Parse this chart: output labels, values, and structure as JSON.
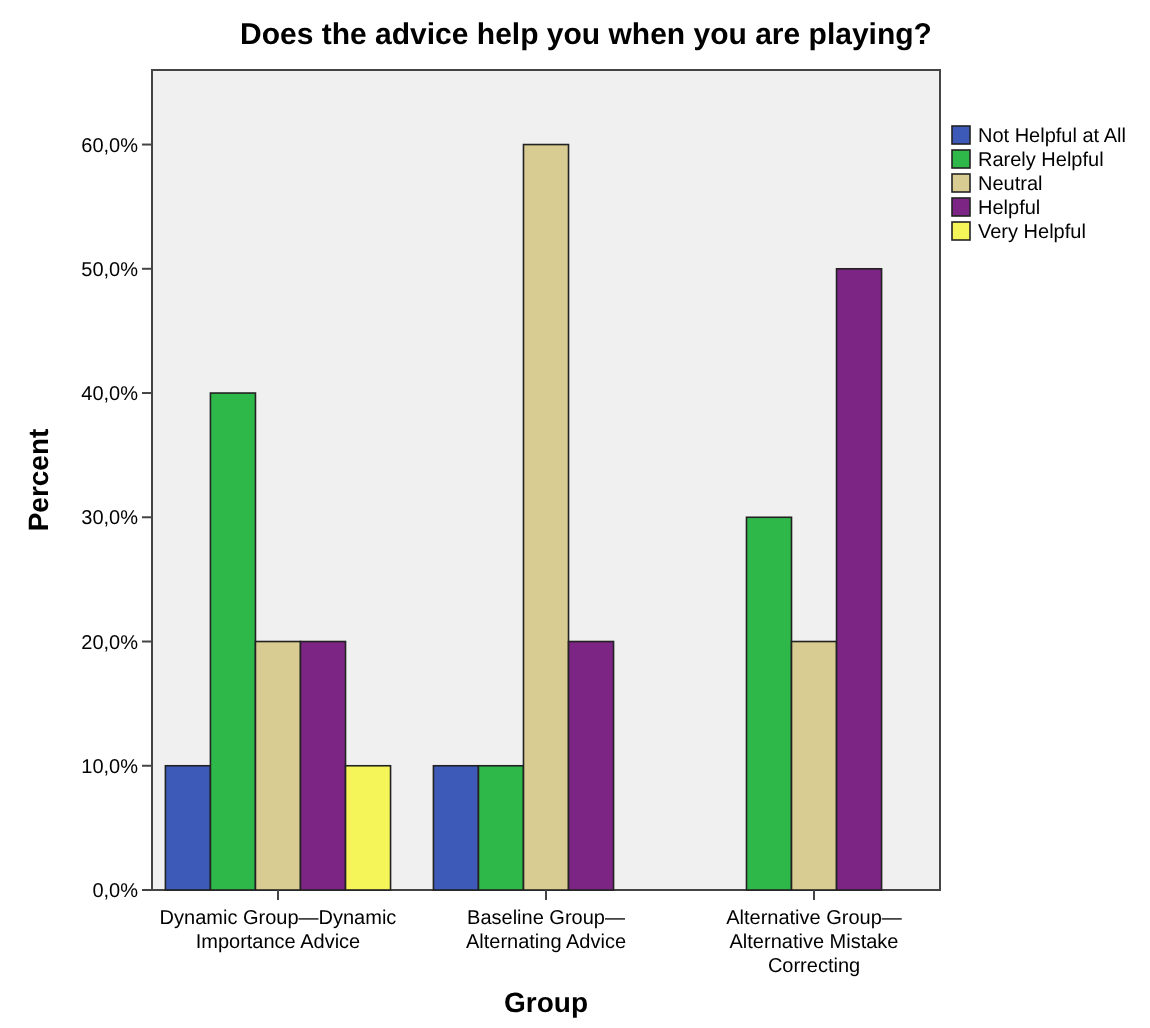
{
  "chart_data": {
    "type": "bar",
    "title": "Does the advice help you when you are playing?",
    "xlabel": "Group",
    "ylabel": "Percent",
    "categories": [
      "Dynamic Group—Dynamic Importance Advice",
      "Baseline Group—Alternating Advice",
      "Alternative Group—Alternative Mistake Correcting"
    ],
    "series": [
      {
        "name": "Not Helpful at All",
        "color": "#3e5ab8",
        "values": [
          10,
          10,
          0
        ]
      },
      {
        "name": "Rarely Helpful",
        "color": "#2eb84a",
        "values": [
          40,
          10,
          30
        ]
      },
      {
        "name": "Neutral",
        "color": "#d9cc92",
        "values": [
          20,
          60,
          20
        ]
      },
      {
        "name": "Helpful",
        "color": "#7c2584",
        "values": [
          20,
          20,
          50
        ]
      },
      {
        "name": "Very Helpful",
        "color": "#f5f55a",
        "values": [
          10,
          0,
          0
        ]
      }
    ],
    "ylim": [
      0,
      66
    ],
    "yticks": [
      {
        "value": 0,
        "label": "0,0%"
      },
      {
        "value": 10,
        "label": "10,0%"
      },
      {
        "value": 20,
        "label": "20,0%"
      },
      {
        "value": 30,
        "label": "30,0%"
      },
      {
        "value": 40,
        "label": "40,0%"
      },
      {
        "value": 50,
        "label": "50,0%"
      },
      {
        "value": 60,
        "label": "60,0%"
      }
    ],
    "grid": false,
    "legend": "right"
  }
}
